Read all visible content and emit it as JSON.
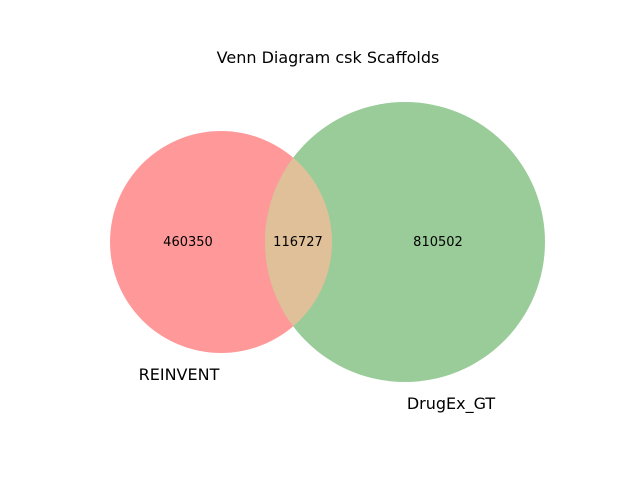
{
  "title": "Venn Diagram csk Scaffolds",
  "sets": [
    {
      "label": "REINVENT",
      "only_count": "460350",
      "color": "#ff9999"
    },
    {
      "label": "DrugEx_GT",
      "only_count": "810502",
      "color": "#99cc99"
    }
  ],
  "intersection": {
    "count": "116727",
    "color": "#e0c099"
  }
}
